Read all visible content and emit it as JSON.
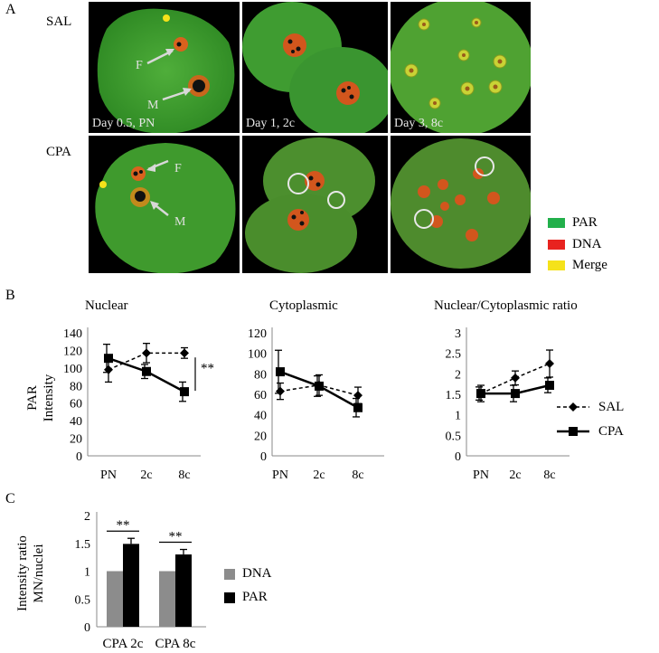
{
  "panel_a": {
    "letter": "A",
    "row_labels": [
      "SAL",
      "CPA"
    ],
    "tile_captions": [
      "Day 0.5, PN",
      "Day 1, 2c",
      "Day 3, 8c"
    ],
    "arrow_labels": [
      "F",
      "M",
      "F",
      "M"
    ],
    "legend": [
      {
        "label": "PAR",
        "color": "#22b04b"
      },
      {
        "label": "DNA",
        "color": "#e8231f"
      },
      {
        "label": "Merge",
        "color": "#f5e21a"
      }
    ]
  },
  "panel_b": {
    "letter": "B",
    "legend": [
      {
        "label": "SAL",
        "style": "dashed-diamond"
      },
      {
        "label": "CPA",
        "style": "solid-square"
      }
    ]
  },
  "panel_c": {
    "letter": "C",
    "legend": [
      {
        "label": "DNA",
        "color": "#8c8c8c"
      },
      {
        "label": "PAR",
        "color": "#000000"
      }
    ]
  },
  "chart_data": [
    {
      "type": "line",
      "title": "Nuclear",
      "ylabel": "PAR Intensity",
      "categories": [
        "PN",
        "2c",
        "8c"
      ],
      "ylim": [
        0,
        140
      ],
      "yticks": [
        0,
        20,
        40,
        60,
        80,
        100,
        120,
        140
      ],
      "series": [
        {
          "name": "SAL",
          "values": [
            98,
            117,
            117
          ],
          "err": [
            14,
            11,
            6
          ]
        },
        {
          "name": "CPA",
          "values": [
            111,
            96,
            73
          ],
          "err": [
            16,
            8,
            11
          ]
        }
      ],
      "annotation": "**"
    },
    {
      "type": "line",
      "title": "Cytoplasmic",
      "categories": [
        "PN",
        "2c",
        "8c"
      ],
      "ylim": [
        0,
        120
      ],
      "yticks": [
        0,
        20,
        40,
        60,
        80,
        100,
        120
      ],
      "series": [
        {
          "name": "SAL",
          "values": [
            63,
            69,
            59
          ],
          "err": [
            8,
            10,
            8
          ]
        },
        {
          "name": "CPA",
          "values": [
            82,
            68,
            47
          ],
          "err": [
            21,
            10,
            9
          ]
        }
      ]
    },
    {
      "type": "line",
      "title": "Nuclear/Cytoplasmic ratio",
      "categories": [
        "PN",
        "2c",
        "8c"
      ],
      "ylim": [
        0,
        3
      ],
      "yticks": [
        "0",
        "0.5",
        "1",
        "1.5",
        "2",
        "2.5",
        "3"
      ],
      "series": [
        {
          "name": "SAL",
          "values": [
            1.52,
            1.9,
            2.25
          ],
          "err": [
            0.2,
            0.17,
            0.33
          ]
        },
        {
          "name": "CPA",
          "values": [
            1.52,
            1.52,
            1.72
          ],
          "err": [
            0.16,
            0.2,
            0.18
          ]
        }
      ]
    },
    {
      "type": "bar",
      "ylabel": "Intensity ratio MN/nuclei",
      "categories": [
        "CPA 2c",
        "CPA 8c"
      ],
      "ylim": [
        0,
        2
      ],
      "yticks": [
        "0",
        "0.5",
        "1",
        "1.5",
        "2"
      ],
      "series": [
        {
          "name": "DNA",
          "values": [
            1.0,
            1.0
          ],
          "err": [
            0,
            0
          ]
        },
        {
          "name": "PAR",
          "values": [
            1.49,
            1.3
          ],
          "err": [
            0.1,
            0.09
          ]
        }
      ],
      "annotations": [
        "**",
        "**"
      ]
    }
  ]
}
